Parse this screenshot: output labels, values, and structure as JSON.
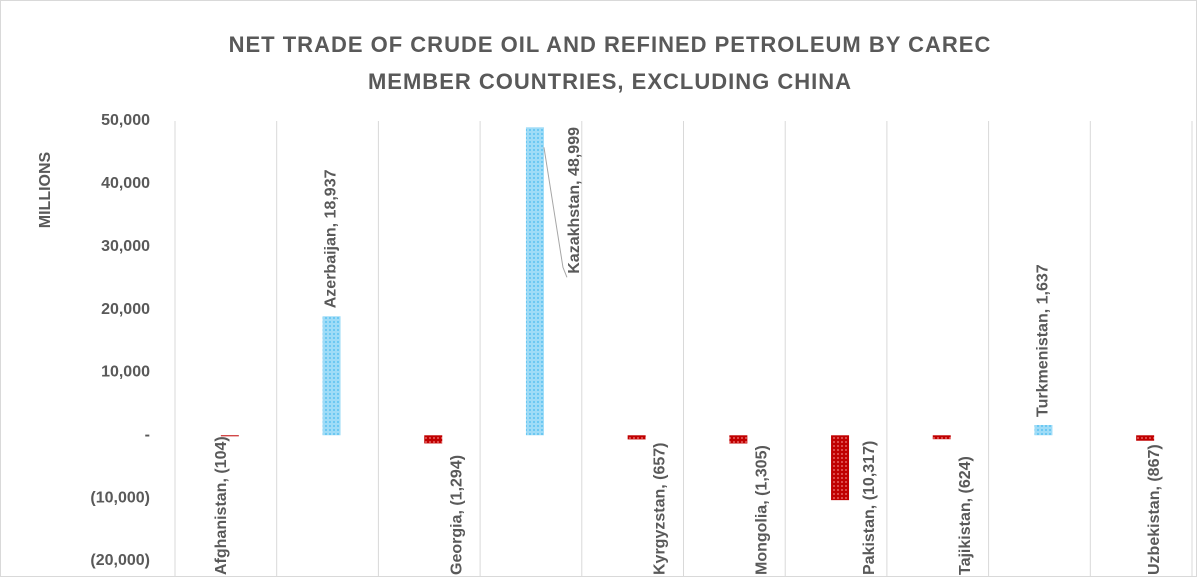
{
  "chart_data": {
    "type": "bar",
    "title": [
      "NET TRADE OF CRUDE OIL AND REFINED PETROLEUM BY CAREC",
      "MEMBER COUNTRIES, EXCLUDING CHINA"
    ],
    "y_label": "MILLIONS",
    "categories": [
      "Afghanistan",
      "Azerbaijan",
      "Georgia",
      "Kazakhstan",
      "Kyrgyzstan",
      "Mongolia",
      "Pakistan",
      "Tajikistan",
      "Turkmenistan",
      "Uzbekistan"
    ],
    "values": [
      -104,
      18937,
      -1294,
      48999,
      -657,
      -1305,
      -10317,
      -624,
      1637,
      -867
    ],
    "value_labels": [
      "(104)",
      "18,937",
      "(1,294)",
      "48,999",
      "(657)",
      "(1,305)",
      "(10,317)",
      "(624)",
      "1,637",
      "(867)"
    ],
    "label_separator": ",  ",
    "positive_color": "#5bc2f0",
    "negative_color": "#c00000",
    "ylim": [
      -20000,
      50000
    ],
    "yticks": [
      {
        "value": -20000,
        "label": "(20,000)"
      },
      {
        "value": -10000,
        "label": "(10,000)"
      },
      {
        "value": 0,
        "label": "-"
      },
      {
        "value": 10000,
        "label": "10,000"
      },
      {
        "value": 20000,
        "label": "20,000"
      },
      {
        "value": 30000,
        "label": "30,000"
      },
      {
        "value": 40000,
        "label": "40,000"
      },
      {
        "value": 50000,
        "label": "50,000"
      }
    ],
    "grid": true
  }
}
